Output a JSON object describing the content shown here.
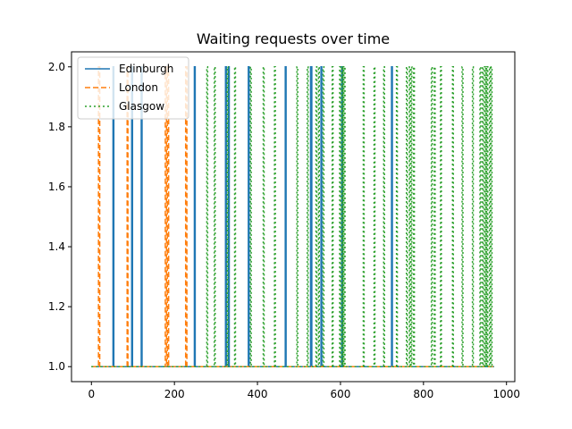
{
  "chart_data": {
    "type": "line",
    "title": "Waiting requests over time",
    "xlabel": "",
    "ylabel": "",
    "xlim": [
      -48,
      1020
    ],
    "ylim": [
      0.95,
      2.05
    ],
    "xticks": [
      0,
      200,
      400,
      600,
      800,
      1000
    ],
    "xtick_labels": [
      "0",
      "200",
      "400",
      "600",
      "800",
      "1000"
    ],
    "yticks": [
      1.0,
      1.2,
      1.4,
      1.6,
      1.8,
      2.0
    ],
    "ytick_labels": [
      "1.0",
      "1.2",
      "1.4",
      "1.6",
      "1.8",
      "2.0"
    ],
    "grid": false,
    "legend": "top-left",
    "x_range": [
      0,
      970
    ],
    "baseline": 1,
    "series": [
      {
        "name": "Edinburgh",
        "color": "#1f77b4",
        "dash": "solid",
        "spikes": [
          {
            "start": 52,
            "end": 54
          },
          {
            "start": 97,
            "end": 99
          },
          {
            "start": 120,
            "end": 122
          },
          {
            "start": 248,
            "end": 250
          },
          {
            "start": 323,
            "end": 325
          },
          {
            "start": 330,
            "end": 332
          },
          {
            "start": 378,
            "end": 380
          },
          {
            "start": 467,
            "end": 469
          },
          {
            "start": 528,
            "end": 531
          },
          {
            "start": 553,
            "end": 555
          },
          {
            "start": 603,
            "end": 605
          },
          {
            "start": 723,
            "end": 725
          }
        ]
      },
      {
        "name": "London",
        "color": "#ff7f0e",
        "dash": "dashed",
        "spikes": [
          {
            "start": 17,
            "end": 20
          },
          {
            "start": 86,
            "end": 88
          },
          {
            "start": 178,
            "end": 181
          },
          {
            "start": 183,
            "end": 186
          },
          {
            "start": 227,
            "end": 230
          }
        ]
      },
      {
        "name": "Glasgow",
        "color": "#2ca02c",
        "dash": "dotted",
        "spikes": [
          {
            "start": 278,
            "end": 280
          },
          {
            "start": 296,
            "end": 298
          },
          {
            "start": 327,
            "end": 329
          },
          {
            "start": 345,
            "end": 347
          },
          {
            "start": 383,
            "end": 385
          },
          {
            "start": 414,
            "end": 416
          },
          {
            "start": 441,
            "end": 443
          },
          {
            "start": 495,
            "end": 497
          },
          {
            "start": 520,
            "end": 522
          },
          {
            "start": 541,
            "end": 543
          },
          {
            "start": 547,
            "end": 549
          },
          {
            "start": 558,
            "end": 560
          },
          {
            "start": 580,
            "end": 582
          },
          {
            "start": 598,
            "end": 600
          },
          {
            "start": 603,
            "end": 605
          },
          {
            "start": 606,
            "end": 608
          },
          {
            "start": 609,
            "end": 611
          },
          {
            "start": 655,
            "end": 657
          },
          {
            "start": 681,
            "end": 683
          },
          {
            "start": 704,
            "end": 706
          },
          {
            "start": 735,
            "end": 737
          },
          {
            "start": 759,
            "end": 761
          },
          {
            "start": 766,
            "end": 768
          },
          {
            "start": 770,
            "end": 772
          },
          {
            "start": 776,
            "end": 778
          },
          {
            "start": 819,
            "end": 821
          },
          {
            "start": 826,
            "end": 828
          },
          {
            "start": 841,
            "end": 843
          },
          {
            "start": 870,
            "end": 872
          },
          {
            "start": 893,
            "end": 895
          },
          {
            "start": 918,
            "end": 920
          },
          {
            "start": 936,
            "end": 938
          },
          {
            "start": 942,
            "end": 944
          },
          {
            "start": 947,
            "end": 949
          },
          {
            "start": 950,
            "end": 952
          },
          {
            "start": 953,
            "end": 955
          },
          {
            "start": 959,
            "end": 961
          },
          {
            "start": 963,
            "end": 965
          }
        ]
      }
    ]
  }
}
